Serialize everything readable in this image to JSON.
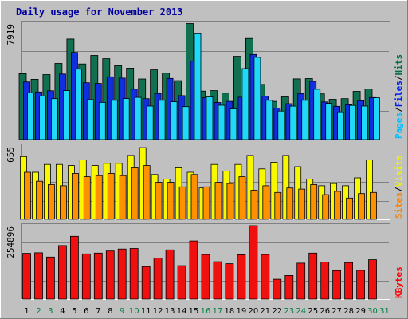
{
  "chart_data": {
    "type": "bar",
    "title": "Daily usage for November 2013",
    "days": [
      "1",
      "2",
      "3",
      "4",
      "5",
      "6",
      "7",
      "8",
      "9",
      "10",
      "11",
      "12",
      "13",
      "14",
      "15",
      "16",
      "17",
      "18",
      "19",
      "20",
      "21",
      "22",
      "23",
      "24",
      "25",
      "26",
      "27",
      "28",
      "29",
      "30",
      "31"
    ],
    "weekend_days": [
      "2",
      "3",
      "9",
      "10",
      "16",
      "17",
      "23",
      "24",
      "30",
      "31"
    ],
    "panels": [
      {
        "id": "top",
        "max_label": "7919",
        "max_value": 7919,
        "legend": [
          {
            "text": "Pages",
            "color": "#00c0ff"
          },
          {
            "text": "Files",
            "color": "#0020f0"
          },
          {
            "text": "Hits",
            "color": "#007040"
          }
        ],
        "series": [
          {
            "name": "Hits",
            "color": "#107050",
            "values": [
              4480,
              4100,
              4420,
              5180,
              6840,
              5140,
              5720,
              5500,
              5030,
              4860,
              4120,
              4740,
              4520,
              4010,
              7890,
              3300,
              3330,
              3160,
              5660,
              6880,
              3750,
              2600,
              2900,
              4130,
              4150,
              3110,
              2740,
              2780,
              3280,
              3440,
              0
            ]
          },
          {
            "name": "Files",
            "color": "#1030e0",
            "values": [
              3920,
              3240,
              3320,
              4460,
              5930,
              3870,
              3820,
              4270,
              4180,
              3430,
              2780,
              3130,
              4160,
              2990,
              5330,
              2840,
              2520,
              2600,
              2880,
              5790,
              2960,
              2140,
              2440,
              3130,
              3960,
              2560,
              2260,
              2370,
              2640,
              2860,
              0
            ]
          },
          {
            "name": "Pages",
            "color": "#20d8f8",
            "values": [
              3170,
              2950,
              2780,
              3330,
              4790,
              2720,
              2530,
              2670,
              2790,
              2870,
              2280,
              2670,
              2570,
              2240,
              7200,
              2900,
              2330,
              2090,
              4830,
              5590,
              2670,
              1940,
              2270,
              2670,
              3420,
              2460,
              1840,
              2320,
              2280,
              2840,
              0
            ]
          }
        ]
      },
      {
        "id": "middle",
        "max_label": "655",
        "max_value": 655,
        "legend": [
          {
            "text": "Sites",
            "color": "#ff8000"
          },
          {
            "text": "Visits",
            "color": "#f0f000"
          }
        ],
        "series": [
          {
            "name": "Visits",
            "color": "#f8f800",
            "values": [
              560,
              420,
              490,
              490,
              480,
              530,
              480,
              500,
              500,
              570,
              640,
              400,
              360,
              460,
              420,
              280,
              490,
              430,
              490,
              570,
              450,
              510,
              570,
              470,
              360,
              300,
              320,
              300,
              370,
              530,
              0
            ]
          },
          {
            "name": "Sites",
            "color": "#ff9000",
            "values": [
              420,
              340,
              310,
              300,
              410,
              380,
              390,
              410,
              390,
              460,
              480,
              330,
              330,
              290,
              400,
              290,
              330,
              320,
              380,
              260,
              300,
              240,
              280,
              270,
              310,
              220,
              250,
              190,
              230,
              240,
              0
            ]
          }
        ]
      },
      {
        "id": "bottom",
        "max_label": "254896",
        "max_value": 254896,
        "legend": [
          {
            "text": "KBytes",
            "color": "#ff0000"
          }
        ],
        "series": [
          {
            "name": "KBytes",
            "color": "#f01010",
            "values": [
              159000,
              161000,
              146000,
              186000,
              218000,
              157000,
              160000,
              167000,
              174000,
              176000,
              113000,
              143000,
              171000,
              116000,
              202000,
              155000,
              130000,
              123000,
              154000,
              254896,
              155000,
              69000,
              82000,
              125000,
              160000,
              129000,
              99000,
              127000,
              100000,
              137000,
              0
            ]
          }
        ]
      }
    ]
  }
}
